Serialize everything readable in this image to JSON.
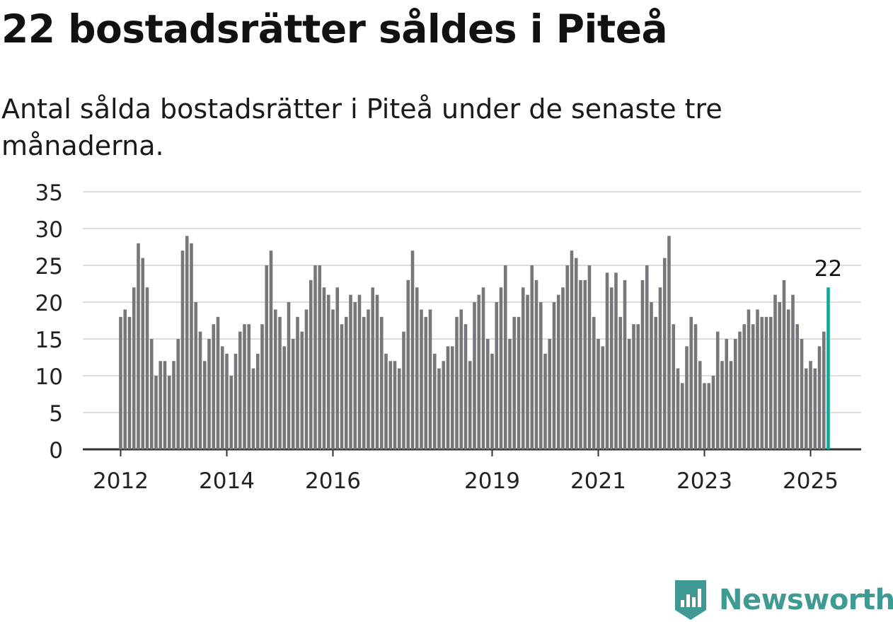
{
  "title": "22 bostadsrätter såldes i Piteå",
  "subtitle": "Antal sålda bostadsrätter i Piteå under de senaste tre månaderna.",
  "brand": {
    "name": "Newsworthy",
    "logo_icon": "newsworthy-bar-chart-badge-icon"
  },
  "colors": {
    "bar": "#76767b",
    "highlight": "#14a79b",
    "grid": "#dcdcdc",
    "axis": "#333333",
    "brand": "#3f9a93"
  },
  "chart_data": {
    "type": "bar",
    "title": "22 bostadsrätter såldes i Piteå",
    "subtitle": "Antal sålda bostadsrätter i Piteå under de senaste tre månaderna.",
    "xlabel": "",
    "ylabel": "",
    "ylim": [
      0,
      35
    ],
    "yticks": [
      0,
      5,
      10,
      15,
      20,
      25,
      30,
      35
    ],
    "xticks": [
      "2012",
      "2014",
      "2016",
      "2019",
      "2021",
      "2023",
      "2025"
    ],
    "grid": true,
    "first_period": "2012-01",
    "last_period": "2025-04",
    "values": [
      18,
      19,
      18,
      22,
      28,
      26,
      22,
      15,
      10,
      12,
      12,
      10,
      12,
      15,
      27,
      29,
      28,
      20,
      16,
      12,
      15,
      17,
      18,
      14,
      13,
      10,
      13,
      16,
      17,
      17,
      11,
      13,
      17,
      25,
      27,
      19,
      18,
      14,
      20,
      15,
      18,
      16,
      19,
      23,
      25,
      25,
      22,
      21,
      19,
      22,
      17,
      18,
      21,
      20,
      21,
      18,
      19,
      22,
      21,
      18,
      13,
      12,
      12,
      11,
      16,
      23,
      27,
      22,
      19,
      18,
      19,
      13,
      11,
      12,
      14,
      14,
      18,
      19,
      17,
      12,
      20,
      21,
      22,
      15,
      13,
      20,
      22,
      25,
      15,
      18,
      18,
      22,
      21,
      25,
      23,
      20,
      13,
      15,
      20,
      21,
      22,
      25,
      27,
      26,
      23,
      23,
      25,
      18,
      15,
      14,
      24,
      22,
      24,
      18,
      23,
      15,
      17,
      17,
      23,
      25,
      20,
      18,
      22,
      26,
      29,
      17,
      11,
      9,
      14,
      18,
      17,
      12,
      9,
      9,
      10,
      16,
      12,
      15,
      12,
      15,
      16,
      17,
      19,
      17,
      19,
      18,
      18,
      18,
      21,
      20,
      23,
      19,
      21,
      17,
      15,
      11,
      12,
      11,
      14,
      16,
      22
    ],
    "highlight_last": true,
    "highlight_label": "22"
  }
}
